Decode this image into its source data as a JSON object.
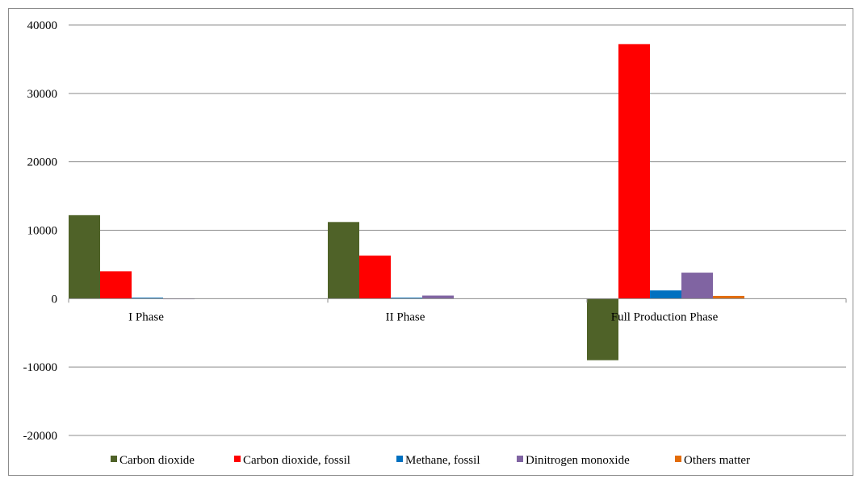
{
  "chart_data": {
    "type": "bar",
    "title": "",
    "xlabel": "",
    "ylabel": "",
    "categories": [
      "I Phase",
      "II Phase",
      "Full Production Phase"
    ],
    "ylim": [
      -20000,
      40000
    ],
    "yticks": [
      -20000,
      -10000,
      0,
      10000,
      20000,
      30000,
      40000
    ],
    "ytick_labels": [
      "-20000",
      "-10000",
      "0",
      "10000",
      "20000",
      "30000",
      "40000"
    ],
    "grid": true,
    "legend_position": "bottom",
    "series": [
      {
        "name": "Carbon dioxide",
        "color": "#4f6228",
        "values": [
          12200,
          11200,
          -9000
        ]
      },
      {
        "name": "Carbon dioxide, fossil",
        "color": "#ff0000",
        "values": [
          4000,
          6300,
          37200
        ]
      },
      {
        "name": "Methane, fossil",
        "color": "#0070c0",
        "values": [
          150,
          150,
          1200
        ]
      },
      {
        "name": "Dinitrogen monoxide",
        "color": "#8064a2",
        "values": [
          30,
          450,
          3800
        ]
      },
      {
        "name": "Others matter",
        "color": "#e36c09",
        "values": [
          0,
          0,
          400
        ]
      }
    ]
  }
}
